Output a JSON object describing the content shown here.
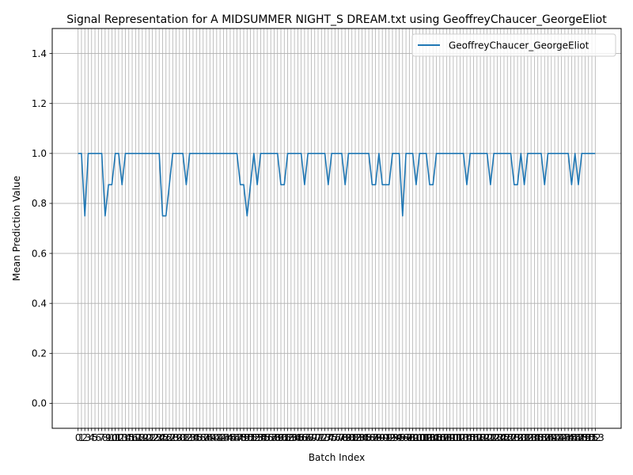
{
  "chart_data": {
    "type": "line",
    "title": "Signal Representation for A MIDSUMMER NIGHT_S DREAM.txt using GeoffreyChaucer_GeorgeEliot",
    "xlabel": "Batch Index",
    "ylabel": "Mean Prediction Value",
    "xlim": [
      -7.65,
      160.65
    ],
    "ylim": [
      -0.1,
      1.5
    ],
    "yticks": [
      0.0,
      0.2,
      0.4,
      0.6,
      0.8,
      1.0,
      1.2,
      1.4
    ],
    "grid": true,
    "legend": "top-right",
    "line_color": "#1f77b4",
    "series": [
      {
        "name": "GeoffreyChaucer_GeorgeEliot",
        "x": [
          0,
          1,
          2,
          3,
          4,
          5,
          6,
          7,
          8,
          9,
          10,
          11,
          12,
          13,
          14,
          15,
          16,
          17,
          18,
          19,
          20,
          21,
          22,
          23,
          24,
          25,
          26,
          27,
          28,
          29,
          30,
          31,
          32,
          33,
          34,
          35,
          36,
          37,
          38,
          39,
          40,
          41,
          42,
          43,
          44,
          45,
          46,
          47,
          48,
          49,
          50,
          51,
          52,
          53,
          54,
          55,
          56,
          57,
          58,
          59,
          60,
          61,
          62,
          63,
          64,
          65,
          66,
          67,
          68,
          69,
          70,
          71,
          72,
          73,
          74,
          75,
          76,
          77,
          78,
          79,
          80,
          81,
          82,
          83,
          84,
          85,
          86,
          87,
          88,
          89,
          90,
          91,
          92,
          93,
          94,
          95,
          96,
          97,
          98,
          99,
          100,
          101,
          102,
          103,
          104,
          105,
          106,
          107,
          108,
          109,
          110,
          111,
          112,
          113,
          114,
          115,
          116,
          117,
          118,
          119,
          120,
          121,
          122,
          123,
          124,
          125,
          126,
          127,
          128,
          129,
          130,
          131,
          132,
          133,
          134,
          135,
          136,
          137,
          138,
          139,
          140,
          141,
          142,
          143,
          144,
          145,
          146,
          147,
          148,
          149,
          150,
          151,
          152,
          153
        ],
        "values": [
          1,
          1,
          0.75,
          1,
          1,
          1,
          1,
          1,
          0.75,
          0.875,
          0.875,
          1,
          1,
          0.875,
          1,
          1,
          1,
          1,
          1,
          1,
          1,
          1,
          1,
          1,
          1,
          0.75,
          0.75,
          0.875,
          1,
          1,
          1,
          1,
          0.875,
          1,
          1,
          1,
          1,
          1,
          1,
          1,
          1,
          1,
          1,
          1,
          1,
          1,
          1,
          1,
          0.875,
          0.875,
          0.75,
          0.875,
          1,
          0.875,
          1,
          1,
          1,
          1,
          1,
          1,
          0.875,
          0.875,
          1,
          1,
          1,
          1,
          1,
          0.875,
          1,
          1,
          1,
          1,
          1,
          1,
          0.875,
          1,
          1,
          1,
          1,
          0.875,
          1,
          1,
          1,
          1,
          1,
          1,
          1,
          0.875,
          0.875,
          1,
          0.875,
          0.875,
          0.875,
          1,
          1,
          1,
          0.75,
          1,
          1,
          1,
          0.875,
          1,
          1,
          1,
          0.875,
          0.875,
          1,
          1,
          1,
          1,
          1,
          1,
          1,
          1,
          1,
          0.875,
          1,
          1,
          1,
          1,
          1,
          1,
          0.875,
          1,
          1,
          1,
          1,
          1,
          1,
          0.875,
          0.875,
          1,
          0.875,
          1,
          1,
          1,
          1,
          1,
          0.875,
          1,
          1,
          1,
          1,
          1,
          1,
          1,
          0.875,
          1,
          0.875,
          1,
          1,
          1,
          1,
          1
        ]
      }
    ]
  }
}
